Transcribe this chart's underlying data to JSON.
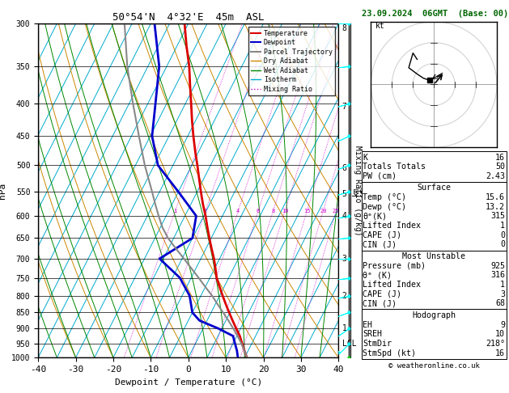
{
  "title_left": "50°54'N  4°32'E  45m  ASL",
  "title_right": "23.09.2024  06GMT  (Base: 00)",
  "xlabel": "Dewpoint / Temperature (°C)",
  "ylabel_left": "hPa",
  "pressure_levels": [
    300,
    350,
    400,
    450,
    500,
    550,
    600,
    650,
    700,
    750,
    800,
    850,
    900,
    950,
    1000
  ],
  "km_labels": [
    "8",
    "7",
    "6",
    "5",
    "4",
    "3",
    "2",
    "1",
    "LCL"
  ],
  "km_pressures": [
    305,
    405,
    505,
    555,
    600,
    700,
    800,
    900,
    952
  ],
  "mixing_ratio_values": [
    1,
    2,
    4,
    6,
    8,
    10,
    15,
    20,
    25
  ],
  "temp_profile_p": [
    1000,
    975,
    950,
    925,
    900,
    875,
    850,
    825,
    800,
    775,
    750,
    725,
    700,
    675,
    650,
    625,
    600,
    575,
    550,
    525,
    500,
    475,
    450,
    425,
    400,
    375,
    350,
    325,
    300
  ],
  "temp_profile_t": [
    15.6,
    14.0,
    12.4,
    10.8,
    8.8,
    6.8,
    4.8,
    2.8,
    0.8,
    -1.2,
    -3.2,
    -4.8,
    -6.5,
    -8.5,
    -10.5,
    -12.5,
    -14.5,
    -16.8,
    -19.0,
    -21.2,
    -23.5,
    -26.0,
    -28.5,
    -31.0,
    -33.5,
    -36.2,
    -39.0,
    -42.5,
    -46.0
  ],
  "dewp_profile_p": [
    1000,
    975,
    950,
    925,
    900,
    875,
    850,
    800,
    750,
    700,
    650,
    600,
    550,
    500,
    450,
    400,
    350,
    300
  ],
  "dewp_profile_t": [
    13.2,
    12.0,
    10.5,
    9.0,
    4.0,
    -2.0,
    -5.0,
    -8.0,
    -13.0,
    -21.0,
    -15.0,
    -17.0,
    -25.0,
    -34.0,
    -39.5,
    -43.0,
    -47.0,
    -54.0
  ],
  "parcel_profile_p": [
    1000,
    975,
    950,
    925,
    900,
    875,
    850,
    825,
    800,
    775,
    750,
    725,
    700,
    675,
    650,
    625,
    600,
    575,
    550,
    500,
    450,
    400,
    350,
    300
  ],
  "parcel_profile_t": [
    15.6,
    14.0,
    12.2,
    10.2,
    8.0,
    5.7,
    3.2,
    0.6,
    -2.0,
    -5.0,
    -8.0,
    -11.2,
    -14.5,
    -18.0,
    -21.5,
    -24.5,
    -27.0,
    -29.5,
    -32.0,
    -37.5,
    -43.0,
    -49.0,
    -55.5,
    -62.0
  ],
  "bg_color": "#ffffff",
  "temp_color": "#dd0000",
  "dewp_color": "#0000cc",
  "parcel_color": "#888888",
  "dry_adiabat_color": "#cc8800",
  "wet_adiabat_color": "#008800",
  "isotherm_color": "#00aacc",
  "mixing_ratio_color": "#cc00cc",
  "grid_color": "#000000",
  "wind_barb_pressures": [
    300,
    350,
    400,
    450,
    500,
    550,
    600,
    650,
    700,
    750,
    800,
    850,
    900,
    950,
    1000
  ],
  "wind_speeds_kt": [
    20,
    18,
    22,
    25,
    20,
    18,
    15,
    15,
    12,
    10,
    10,
    10,
    12,
    15,
    15
  ],
  "wind_dirs_deg": [
    270,
    265,
    255,
    245,
    250,
    255,
    260,
    265,
    270,
    265,
    260,
    250,
    235,
    225,
    220
  ],
  "wind_colors": [
    "cyan",
    "cyan",
    "cyan",
    "cyan",
    "cyan",
    "cyan",
    "cyan",
    "cyan",
    "cyan",
    "cyan",
    "cyan",
    "cyan",
    "cyan",
    "cyan",
    "#00cc00"
  ],
  "copyright": "© weatheronline.co.uk",
  "skew_factor": 45.0
}
